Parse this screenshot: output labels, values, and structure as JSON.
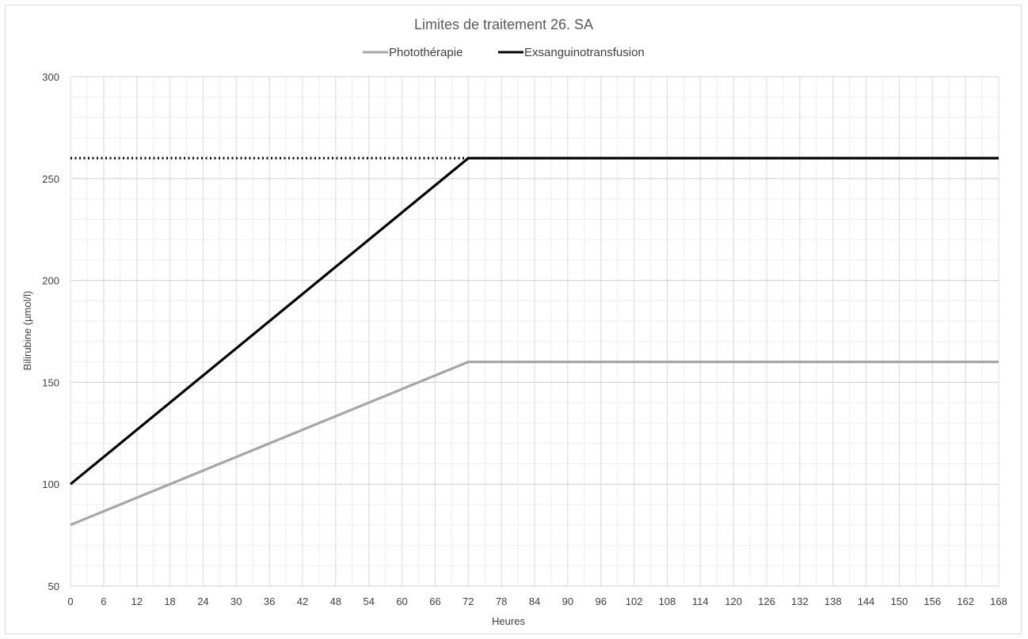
{
  "chart_data": {
    "type": "line",
    "title": "Limites de traitement 26. SA",
    "xlabel": "Heures",
    "ylabel": "Bilirubine (µmol/l)",
    "xlim": [
      0,
      168
    ],
    "ylim": [
      50,
      300
    ],
    "x_ticks": [
      0,
      6,
      12,
      18,
      24,
      30,
      36,
      42,
      48,
      54,
      60,
      66,
      72,
      78,
      84,
      90,
      96,
      102,
      108,
      114,
      120,
      126,
      132,
      138,
      144,
      150,
      156,
      162,
      168
    ],
    "x_minor_step": 3,
    "y_ticks": [
      50,
      100,
      150,
      200,
      250,
      300
    ],
    "y_minor_step": 10,
    "grid": true,
    "legend_position": "top",
    "series": [
      {
        "name": "Photothérapie",
        "color": "#a6a6a6",
        "style": "solid",
        "x": [
          0,
          72,
          168
        ],
        "y": [
          80,
          160,
          160
        ]
      },
      {
        "name": "Exsanguinotransfusion",
        "color": "#000000",
        "style": "solid",
        "x": [
          0,
          72,
          168
        ],
        "y": [
          100,
          260,
          260
        ]
      }
    ],
    "reference_line": {
      "color": "#000000",
      "style": "dotted",
      "y": 260,
      "x_range": [
        0,
        72
      ]
    }
  }
}
